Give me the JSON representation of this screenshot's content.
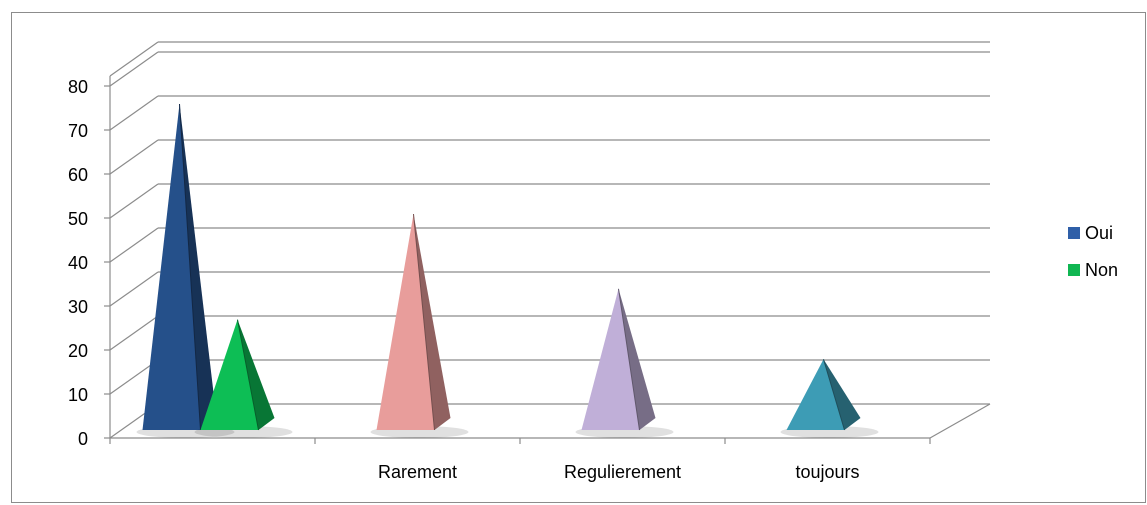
{
  "chart_data": {
    "type": "bar",
    "style": "3d-pyramid",
    "categories": [
      "",
      "Rarement",
      "Regulierement",
      "toujours"
    ],
    "series": [
      {
        "name": "Oui",
        "values": [
          75,
          50,
          33,
          17
        ]
      },
      {
        "name": "Non",
        "values": [
          26,
          null,
          null,
          null
        ]
      }
    ],
    "bar_colors": [
      [
        "#25508a",
        "#e89d9b",
        "#c0afd8",
        "#3d9cb5"
      ],
      [
        "#0dbe55",
        null,
        null,
        null
      ]
    ],
    "ylim": [
      0,
      80
    ],
    "yticks": [
      "0",
      "10",
      "20",
      "30",
      "40",
      "50",
      "60",
      "70",
      "80"
    ],
    "grid": true,
    "legend_position": "right",
    "legend": [
      {
        "name": "Oui",
        "color": "#2f5fa8"
      },
      {
        "name": "Non",
        "color": "#10b652"
      }
    ]
  }
}
